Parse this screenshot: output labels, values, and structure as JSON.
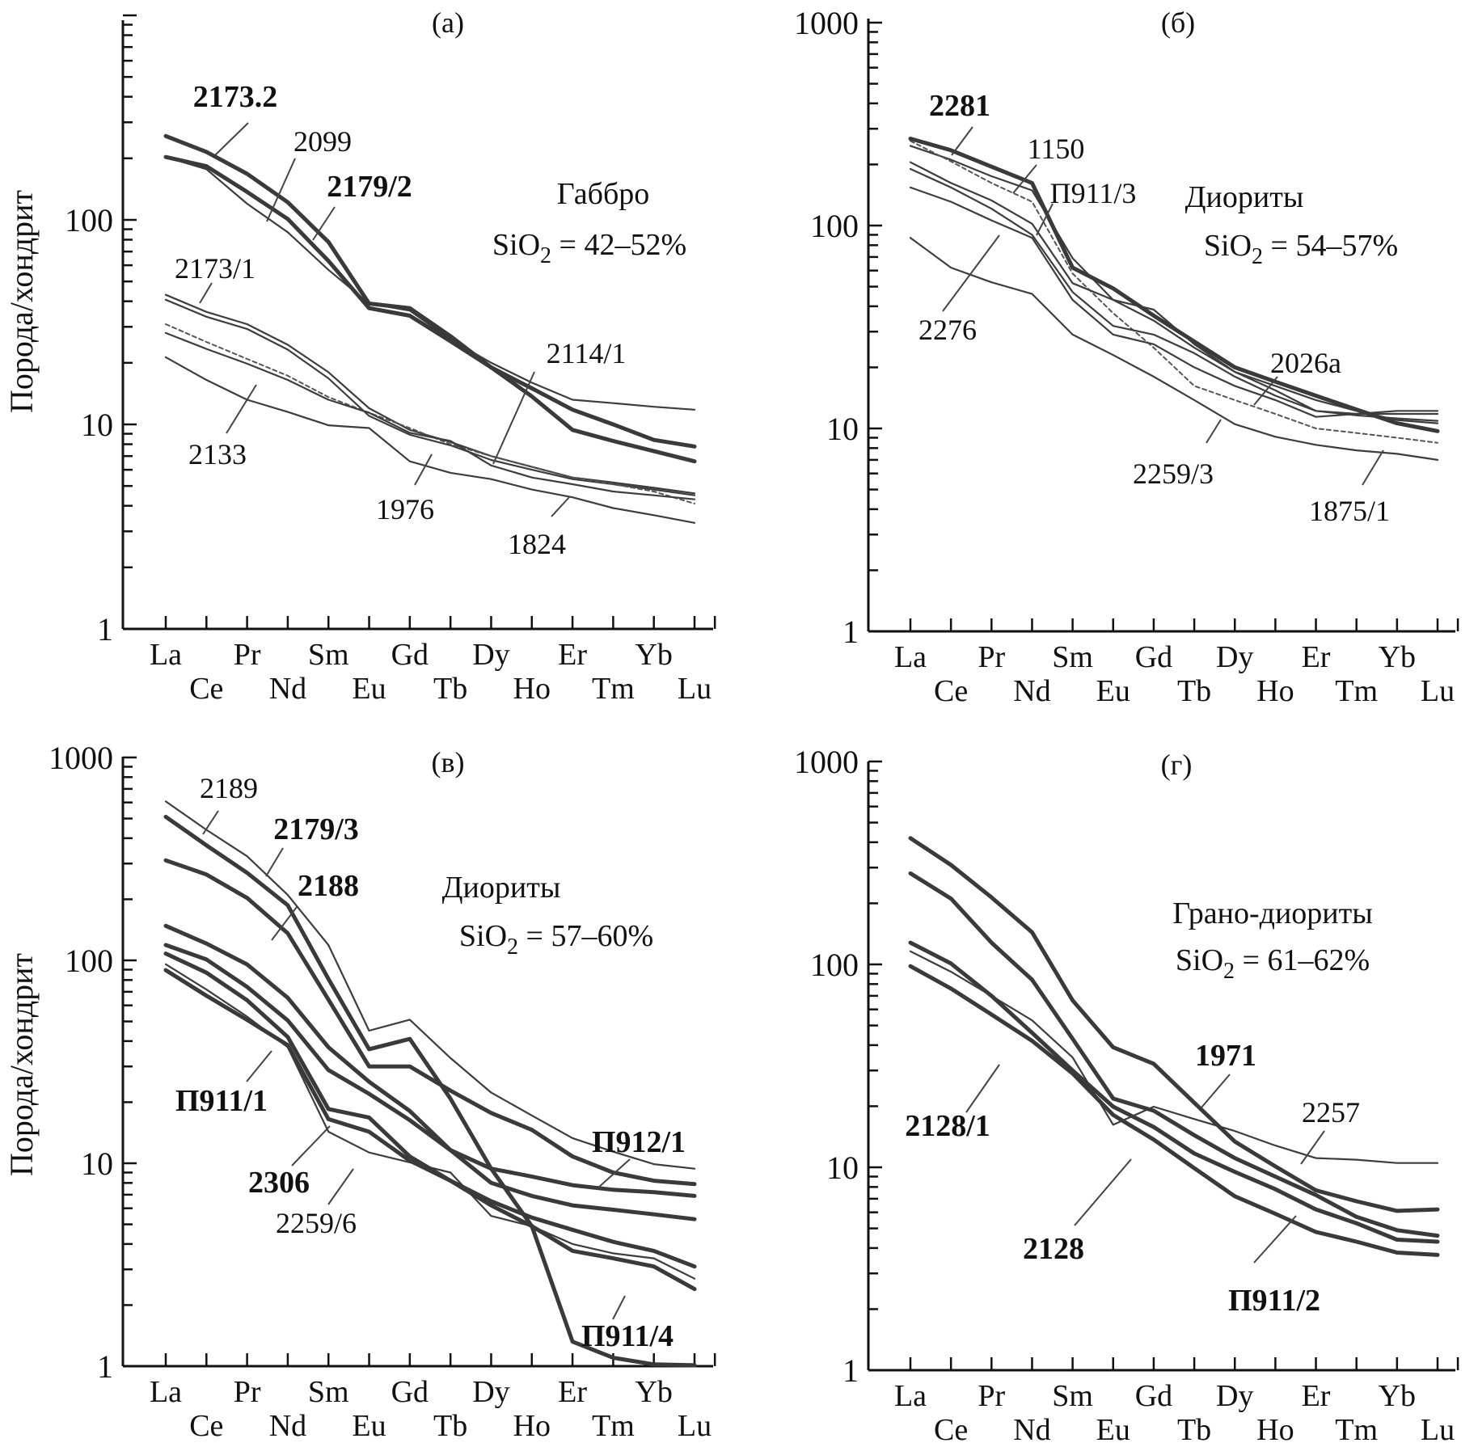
{
  "figure": {
    "y_axis_title": "Порода/хондрит",
    "elements": [
      "La",
      "Ce",
      "Pr",
      "Nd",
      "Sm",
      "Eu",
      "Gd",
      "Tb",
      "Dy",
      "Ho",
      "Er",
      "Tm",
      "Yb",
      "Lu"
    ]
  },
  "chart_data": [
    {
      "type": "line",
      "panel": "(а)",
      "title": "Габбро",
      "subtitle": "SiO2 = 42–52%",
      "xlabel": "",
      "ylabel": "Порода/хондрит",
      "yscale": "log",
      "ylim": [
        1,
        1000
      ],
      "ytick_labels": [
        "1",
        "10",
        "100"
      ],
      "categories": [
        "La",
        "Ce",
        "Pr",
        "Nd",
        "Sm",
        "Eu",
        "Gd",
        "Tb",
        "Dy",
        "Ho",
        "Er",
        "Tm",
        "Yb",
        "Lu"
      ],
      "series": [
        {
          "name": "2173.2",
          "style": "bold",
          "values": [
            257,
            215,
            168,
            122,
            78,
            39,
            37,
            27,
            19,
            15,
            11.8,
            10,
            8.4,
            7.8
          ]
        },
        {
          "name": "2179/2",
          "style": "bold",
          "values": [
            203,
            183,
            137,
            101,
            63,
            37,
            34,
            25.5,
            19,
            13.7,
            9.4,
            8.3,
            7.4,
            6.6
          ]
        },
        {
          "name": "2099",
          "style": "thin",
          "values": [
            203,
            177,
            120,
            87,
            57,
            39,
            36,
            26,
            20,
            16,
            13.2,
            12.7,
            12.2,
            11.8
          ]
        },
        {
          "name": "2173/1",
          "style": "thin",
          "values": [
            43,
            35.5,
            30.9,
            24.5,
            18,
            12,
            9.4,
            8.2,
            7.0,
            6.2,
            5.5,
            5.2,
            4.9,
            4.6
          ]
        },
        {
          "name": "2114/1",
          "style": "thin",
          "values": [
            40.7,
            33.6,
            29.3,
            23.2,
            16.8,
            11,
            8.9,
            7.9,
            6.7,
            6.0,
            5.4,
            5.1,
            4.8,
            4.5
          ]
        },
        {
          "name": "1976",
          "style": "dotted",
          "values": [
            30.9,
            25.3,
            20.9,
            17.3,
            13.6,
            11.4,
            9.6,
            8.0,
            7.0,
            6.2,
            5.5,
            5.1,
            4.7,
            4.1
          ]
        },
        {
          "name": "2133",
          "style": "thin",
          "values": [
            28,
            23.4,
            19.8,
            16.5,
            13.2,
            11.4,
            9.1,
            8.3,
            6.3,
            5.5,
            5.1,
            4.7,
            4.5,
            4.3
          ]
        },
        {
          "name": "1824",
          "style": "thin",
          "values": [
            21.3,
            16.5,
            13.2,
            11.5,
            9.9,
            9.6,
            6.6,
            5.8,
            5.4,
            4.8,
            4.4,
            3.9,
            3.6,
            3.3
          ]
        }
      ]
    },
    {
      "type": "line",
      "panel": "(б)",
      "title": "Диориты",
      "subtitle": "SiO2 = 54–57%",
      "xlabel": "",
      "ylabel": "",
      "yscale": "log",
      "ylim": [
        1,
        1000
      ],
      "ytick_labels": [
        "1",
        "10",
        "100",
        "1000"
      ],
      "categories": [
        "La",
        "Ce",
        "Pr",
        "Nd",
        "Sm",
        "Eu",
        "Gd",
        "Tb",
        "Dy",
        "Ho",
        "Er",
        "Tm",
        "Yb",
        "Lu"
      ],
      "series": [
        {
          "name": "2281",
          "style": "bold",
          "values": [
            268,
            235,
            195,
            162,
            62,
            49,
            36,
            26.8,
            20,
            17,
            14.5,
            12.4,
            10.6,
            9.7
          ]
        },
        {
          "name": "1150",
          "style": "thin",
          "values": [
            247,
            211,
            175,
            149,
            69,
            43,
            34,
            25,
            19,
            16.2,
            13.8,
            12.2,
            11,
            10.6
          ]
        },
        {
          "name": "1875/1",
          "style": "dotted",
          "values": [
            261,
            207,
            162,
            131,
            58,
            37,
            25,
            16.2,
            13.8,
            11.8,
            10,
            9.5,
            9.0,
            8.5
          ]
        },
        {
          "name": "П911/3",
          "style": "thin",
          "values": [
            205,
            162,
            133,
            102,
            52,
            43,
            38.5,
            26,
            19,
            15.4,
            12.2,
            11.8,
            11.8,
            11.8
          ]
        },
        {
          "name": "2026а",
          "style": "thin",
          "values": [
            190,
            154,
            121,
            90,
            47,
            32,
            29,
            23.5,
            18,
            14.5,
            12.2,
            11.6,
            11.2,
            10.9
          ]
        },
        {
          "name": "2276",
          "style": "thin",
          "values": [
            154,
            131,
            106,
            87,
            43,
            29,
            26,
            20,
            16.2,
            13.8,
            11.4,
            11.8,
            12.2,
            12.2
          ]
        },
        {
          "name": "2259/3",
          "style": "thin",
          "values": [
            87,
            62,
            52.5,
            46,
            29,
            23,
            18,
            13.8,
            10.5,
            9.1,
            8.3,
            7.8,
            7.5,
            7.0
          ]
        }
      ]
    },
    {
      "type": "line",
      "panel": "(в)",
      "title": "Диориты",
      "subtitle": "SiO2 = 57–60%",
      "xlabel": "",
      "ylabel": "Порода/хондрит",
      "yscale": "log",
      "ylim": [
        1,
        1000
      ],
      "ytick_labels": [
        "1",
        "10",
        "100",
        "1000"
      ],
      "categories": [
        "La",
        "Ce",
        "Pr",
        "Nd",
        "Sm",
        "Eu",
        "Gd",
        "Tb",
        "Dy",
        "Ho",
        "Er",
        "Tm",
        "Yb",
        "Lu"
      ],
      "series": [
        {
          "name": "2189",
          "style": "thin",
          "values": [
            607,
            440,
            326,
            210,
            119,
            45,
            51,
            33,
            22.3,
            17.2,
            13.3,
            11.4,
            9.9,
            9.4
          ]
        },
        {
          "name": "2179/3",
          "style": "bold",
          "values": [
            510,
            369,
            270,
            187,
            81,
            36.5,
            41,
            20.8,
            9.4,
            4.9,
            1.32,
            1.1,
            1.02,
            1.01
          ]
        },
        {
          "name": "2188",
          "style": "bold",
          "values": [
            311,
            265,
            203,
            136,
            64,
            30,
            30,
            22.8,
            17.7,
            14.6,
            10.8,
            9.0,
            8.2,
            7.9
          ]
        },
        {
          "name": "П912/1",
          "style": "bold",
          "values": [
            148,
            121,
            95.5,
            65.4,
            37.3,
            25.2,
            18.1,
            11.6,
            9.4,
            8.6,
            7.8,
            7.4,
            7.2,
            6.9
          ]
        },
        {
          "name": "П911/1",
          "style": "bold",
          "values": [
            119,
            101,
            74,
            50.6,
            28.8,
            22,
            16.3,
            11.6,
            8.0,
            6.9,
            6.2,
            5.9,
            5.6,
            5.3
          ]
        },
        {
          "name": "2306",
          "style": "bold",
          "values": [
            108,
            87,
            63.6,
            41.9,
            18.5,
            16.8,
            10.8,
            8.2,
            6.5,
            5.4,
            4.7,
            4.1,
            3.7,
            3.1
          ]
        },
        {
          "name": "2259/6",
          "style": "thin",
          "values": [
            95.7,
            71.8,
            52.8,
            37.3,
            14.3,
            11.3,
            10.1,
            9.0,
            5.5,
            4.9,
            4.0,
            3.6,
            3.4,
            2.7
          ]
        },
        {
          "name": "П911/4",
          "style": "bold",
          "values": [
            89.5,
            67,
            50.9,
            38.2,
            16.5,
            14.3,
            10.3,
            8.2,
            6.2,
            4.9,
            3.7,
            3.4,
            3.1,
            2.4
          ]
        }
      ]
    },
    {
      "type": "line",
      "panel": "(г)",
      "title": "Грано-диориты",
      "subtitle": "SiO2 = 61–62%",
      "xlabel": "",
      "ylabel": "",
      "yscale": "log",
      "ylim": [
        1,
        1000
      ],
      "ytick_labels": [
        "1",
        "10",
        "100",
        "1000"
      ],
      "categories": [
        "La",
        "Ce",
        "Pr",
        "Nd",
        "Sm",
        "Eu",
        "Gd",
        "Tb",
        "Dy",
        "Ho",
        "Er",
        "Tm",
        "Yb",
        "Lu"
      ],
      "series": [
        {
          "name": "1971",
          "style": "bold",
          "values": [
            419,
            309,
            214,
            144,
            66.5,
            39,
            32.4,
            20.8,
            13.4,
            10.1,
            7.7,
            6.8,
            6.1,
            6.2
          ]
        },
        {
          "name": "2128",
          "style": "bold",
          "values": [
            281,
            211,
            128,
            84,
            43,
            21.8,
            19.0,
            14.4,
            11.1,
            9.0,
            7.3,
            5.7,
            4.9,
            4.6
          ]
        },
        {
          "name": "П911/2",
          "style": "bold",
          "values": [
            128,
            101,
            70,
            46,
            30,
            19.9,
            15.8,
            11.7,
            9.5,
            7.8,
            6.2,
            5.3,
            4.4,
            4.3
          ]
        },
        {
          "name": "2257",
          "style": "thin",
          "values": [
            116,
            92,
            70,
            53,
            34.8,
            16.2,
            19.9,
            17.3,
            15.1,
            12.8,
            11.1,
            10.9,
            10.5,
            10.5
          ]
        },
        {
          "name": "2128/1",
          "style": "bold",
          "values": [
            98,
            76,
            56.6,
            42,
            29,
            18.1,
            13.7,
            9.9,
            7.2,
            5.9,
            4.8,
            4.3,
            3.8,
            3.7
          ]
        }
      ]
    }
  ]
}
